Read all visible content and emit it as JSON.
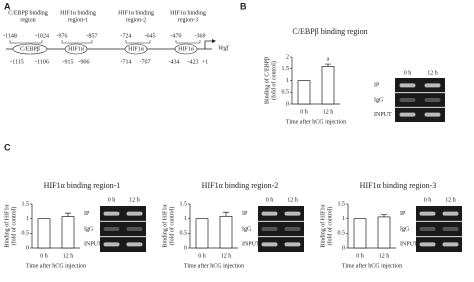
{
  "panel_labels": [
    "A",
    "B",
    "C"
  ],
  "diagram": {
    "top_numbers": [
      "-1148",
      "-1024",
      "-976",
      "-857",
      "-724",
      "-645",
      "-470",
      "-369"
    ],
    "regions": [
      [
        "C/EBPβ binding",
        "region"
      ],
      [
        "HIF1α binding",
        "region-1"
      ],
      [
        "HIF1α binding",
        "region-2"
      ],
      [
        "HIF1α binding",
        "region-3"
      ]
    ],
    "sites": [
      "C/EBPβ",
      "HIF1α",
      "HIF1α",
      "HIF1α"
    ],
    "bottom_numbers": [
      "-1115",
      "-1106",
      "-915",
      "-906",
      "-714",
      "-707",
      "-434",
      "-423",
      "+1"
    ],
    "gene": "Vegf"
  },
  "gels": [
    {
      "lanes": [
        "0 h",
        "12 h"
      ],
      "rows": [
        "IP",
        "IgG",
        "INPUT"
      ]
    },
    {
      "lanes": [
        "0 h",
        "12 h"
      ],
      "rows": [
        "IP",
        "IgG",
        "INPUT"
      ]
    },
    {
      "lanes": [
        "0 h",
        "12 h"
      ],
      "rows": [
        "IP",
        "IgG",
        "INPUT"
      ]
    },
    {
      "lanes": [
        "0 h",
        "12 h"
      ],
      "rows": [
        "IP",
        "IgG",
        "INPUT"
      ]
    }
  ],
  "chart_data": [
    {
      "type": "bar",
      "title": "C/EBPβ binding region",
      "ylabel": [
        "Binding of C/EBPβ",
        "(fold of control)"
      ],
      "xlabel": "Time after hCG injection",
      "categories": [
        "0 h",
        "12 h"
      ],
      "values": [
        1,
        1.6
      ],
      "errors": [
        0,
        0.1
      ],
      "annotation": "a",
      "color": "#ffffff",
      "ylim": [
        0,
        2
      ],
      "yticks": [
        0,
        0.5,
        1,
        1.5,
        2
      ]
    },
    {
      "type": "bar",
      "title": "HIF1α binding region-1",
      "ylabel": [
        "Binding of HIF1α",
        "(fold of control)"
      ],
      "xlabel": "Time after hCG injection",
      "categories": [
        "0 h",
        "12 h"
      ],
      "values": [
        1,
        1.07
      ],
      "errors": [
        0,
        0.12
      ],
      "color": "#ffffff",
      "ylim": [
        0,
        1.5
      ],
      "yticks": [
        0,
        0.5,
        1,
        1.5
      ]
    },
    {
      "type": "bar",
      "title": "HIF1α binding region-2",
      "ylabel": [
        "Binding of HIF1α",
        "(fold of control)"
      ],
      "xlabel": "Time after hCG injection",
      "categories": [
        "0 h",
        "12 h"
      ],
      "values": [
        1,
        1.08
      ],
      "errors": [
        0,
        0.14
      ],
      "color": "#ffffff",
      "ylim": [
        0,
        1.5
      ],
      "yticks": [
        0,
        0.5,
        1,
        1.5
      ]
    },
    {
      "type": "bar",
      "title": "HIF1α binding region-3",
      "ylabel": [
        "Binding of HIF1α",
        "(fold of control)"
      ],
      "xlabel": "Time after hCG injection",
      "categories": [
        "0 h",
        "12 h"
      ],
      "values": [
        1,
        1.06
      ],
      "errors": [
        0,
        0.08
      ],
      "color": "#ffffff",
      "ylim": [
        0,
        1.5
      ],
      "yticks": [
        0,
        0.5,
        1,
        1.5
      ]
    }
  ]
}
